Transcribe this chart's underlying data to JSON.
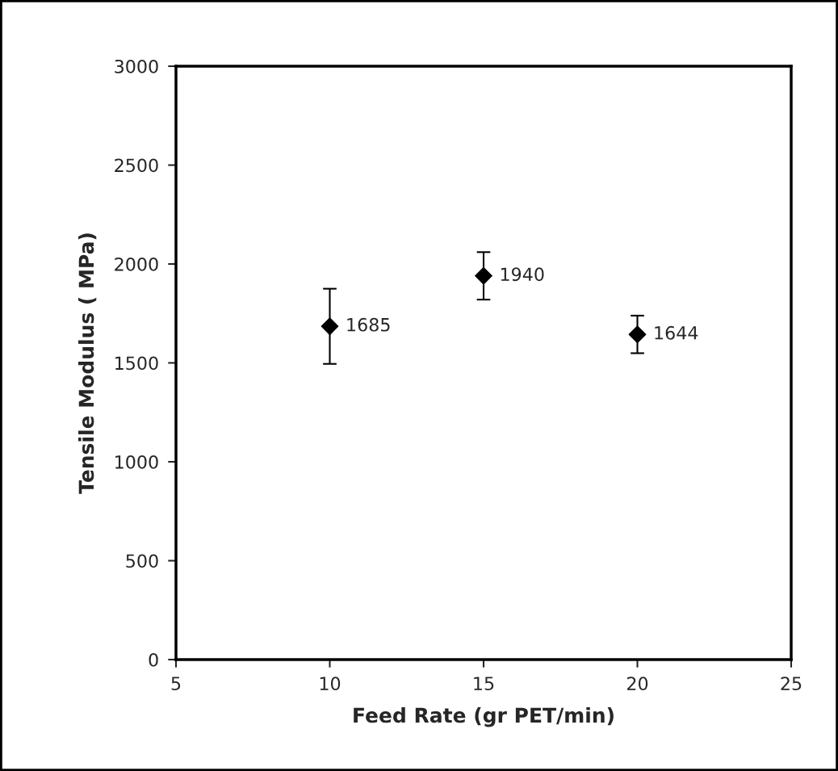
{
  "chart_data": {
    "type": "scatter",
    "xlabel": "Feed Rate (gr PET/min)",
    "ylabel": "Tensile Modulus ( MPa)",
    "x": [
      10,
      15,
      20
    ],
    "values": [
      1685,
      1940,
      1644
    ],
    "errors": [
      190,
      120,
      95
    ],
    "color": "#000000",
    "marker": "diamond",
    "data_labels": true,
    "xlim": [
      5,
      25
    ],
    "xticks": [
      5,
      10,
      15,
      20,
      25
    ],
    "ylim": [
      0,
      3000
    ],
    "yticks": [
      0,
      500,
      1000,
      1500,
      2000,
      2500,
      3000
    ],
    "grid": false,
    "legend": false
  }
}
